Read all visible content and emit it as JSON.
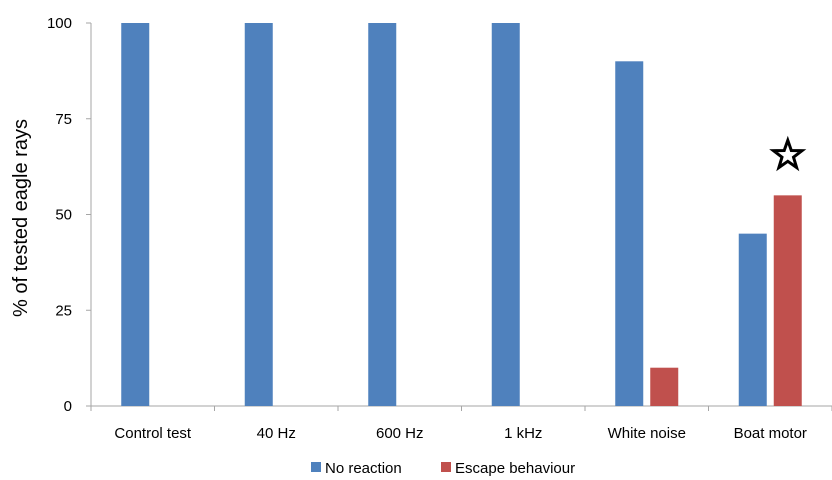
{
  "chart_data": {
    "type": "bar",
    "title": "",
    "xlabel": "",
    "ylabel": "% of tested eagle rays",
    "ylim": [
      0,
      100
    ],
    "yticks": [
      0,
      25,
      50,
      75,
      100
    ],
    "categories": [
      "Control test",
      "40 Hz",
      "600 Hz",
      "1 kHz",
      "White noise",
      "Boat motor"
    ],
    "series": [
      {
        "name": "No reaction",
        "color": "#4f81bd",
        "values": [
          100,
          100,
          100,
          100,
          90,
          45
        ]
      },
      {
        "name": "Escape behaviour",
        "color": "#c0504d",
        "values": [
          0,
          0,
          0,
          0,
          10,
          55
        ]
      }
    ],
    "annotations": [
      {
        "type": "star-icon",
        "category": "Boat motor",
        "series": "Escape behaviour",
        "meaning": "significance marker"
      }
    ],
    "grid": false,
    "legend": "bottom-center"
  }
}
